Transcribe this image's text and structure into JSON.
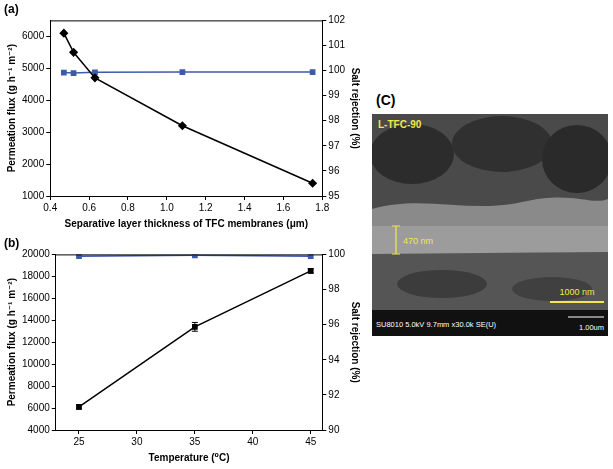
{
  "chart_data": [
    {
      "type": "line",
      "title": "(a)",
      "x_label": "Separative layer thickness of TFC membranes (μm)",
      "y_label": "Permeation flux (g h⁻¹ m⁻²)",
      "y2_label": "Salt rejection (%)",
      "x": [
        0.47,
        0.52,
        0.63,
        1.08,
        1.75
      ],
      "xlim": [
        0.4,
        1.8
      ],
      "xticks": [
        0.4,
        0.6,
        0.8,
        {
          "value": 1,
          "label": "1.0"
        },
        1.2,
        1.4,
        1.6,
        1.8
      ],
      "ylim": [
        1000,
        6500
      ],
      "yticks": [
        1000,
        2000,
        3000,
        4000,
        5000,
        6000
      ],
      "y2lim": [
        95,
        102
      ],
      "y2ticks": [
        95,
        96,
        97,
        98,
        99,
        100,
        101,
        102
      ],
      "grid": false,
      "series": [
        {
          "color": "#000000",
          "marker": "diamond",
          "values": [
            6100,
            5500,
            4700,
            3200,
            1400
          ]
        },
        {
          "color": "#3d5ba9",
          "marker": "square",
          "axis": "y2",
          "values": [
            99.92,
            99.9,
            99.93,
            99.94,
            99.94
          ]
        }
      ]
    },
    {
      "type": "line",
      "title": "(b)",
      "x_label": "Temperature (⁰C)",
      "y_label": "Permeation flux (g h⁻¹ m⁻²)",
      "y2_label": "Salt rejection (%)",
      "x": [
        25,
        35,
        45
      ],
      "xlim": [
        23,
        46
      ],
      "xticks": [
        25,
        30,
        35,
        40,
        45
      ],
      "ylim": [
        4000,
        20000
      ],
      "yticks": [
        4000,
        6000,
        8000,
        10000,
        12000,
        14000,
        16000,
        18000,
        20000
      ],
      "y2lim": [
        90,
        100
      ],
      "y2ticks": [
        90,
        92,
        94,
        96,
        98,
        100
      ],
      "grid": false,
      "series": [
        {
          "color": "#000000",
          "marker": "square",
          "values": [
            6100,
            13400,
            18500
          ],
          "errors": [
            200,
            400,
            200
          ]
        },
        {
          "color": "#3d5ba9",
          "marker": "square",
          "axis": "y2",
          "values": [
            99.9,
            99.95,
            99.9
          ]
        }
      ]
    }
  ],
  "image_panel": {
    "panel": "(C)",
    "sample": "L-TFC-90",
    "thickness_label": "470 nm",
    "scale_label": "1000 nm",
    "info": "SU8010 5.0kV 9.7mm x30.0k SE(U)",
    "info_scale": "1.00um"
  }
}
